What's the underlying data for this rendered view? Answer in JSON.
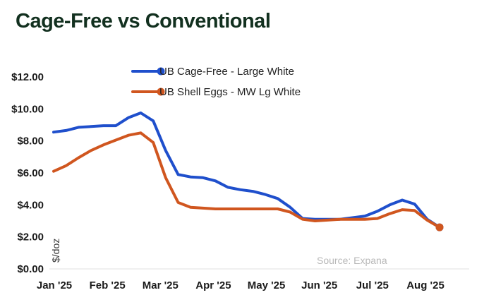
{
  "chart_data": {
    "type": "line",
    "title": "Cage-Free vs Conventional",
    "ylabel": "$/doz",
    "xlabel": "",
    "source": "Source: Expana",
    "ylim": [
      0,
      12
    ],
    "yticks": [
      0,
      2,
      4,
      6,
      8,
      10,
      12
    ],
    "ytick_labels": [
      "$0.00",
      "$2.00",
      "$4.00",
      "$6.00",
      "$8.00",
      "$10.00",
      "$12.00"
    ],
    "xtick_labels": [
      "Jan '25",
      "Feb '25",
      "Mar '25",
      "Apr '25",
      "May '25",
      "Jun '25",
      "Jul '25",
      "Aug '25"
    ],
    "grid": false,
    "legend_position": "top-center",
    "series": [
      {
        "name": "UB Cage-Free - Large White",
        "color": "#1f4fcc",
        "values": [
          8.55,
          8.65,
          8.85,
          8.9,
          8.95,
          8.95,
          9.45,
          9.75,
          9.25,
          7.4,
          5.9,
          5.75,
          5.7,
          5.5,
          5.1,
          4.95,
          4.85,
          4.65,
          4.4,
          3.85,
          3.15,
          3.1,
          3.1,
          3.1,
          3.2,
          3.3,
          3.6,
          4.0,
          4.3,
          4.05,
          3.1,
          2.6
        ]
      },
      {
        "name": "UB Shell Eggs - MW Lg White",
        "color": "#d0561f",
        "values": [
          6.1,
          6.45,
          6.95,
          7.4,
          7.75,
          8.05,
          8.35,
          8.5,
          7.9,
          5.7,
          4.15,
          3.85,
          3.8,
          3.75,
          3.75,
          3.75,
          3.75,
          3.75,
          3.75,
          3.55,
          3.1,
          3.0,
          3.05,
          3.1,
          3.1,
          3.1,
          3.15,
          3.45,
          3.7,
          3.65,
          3.05,
          2.6
        ]
      }
    ]
  }
}
